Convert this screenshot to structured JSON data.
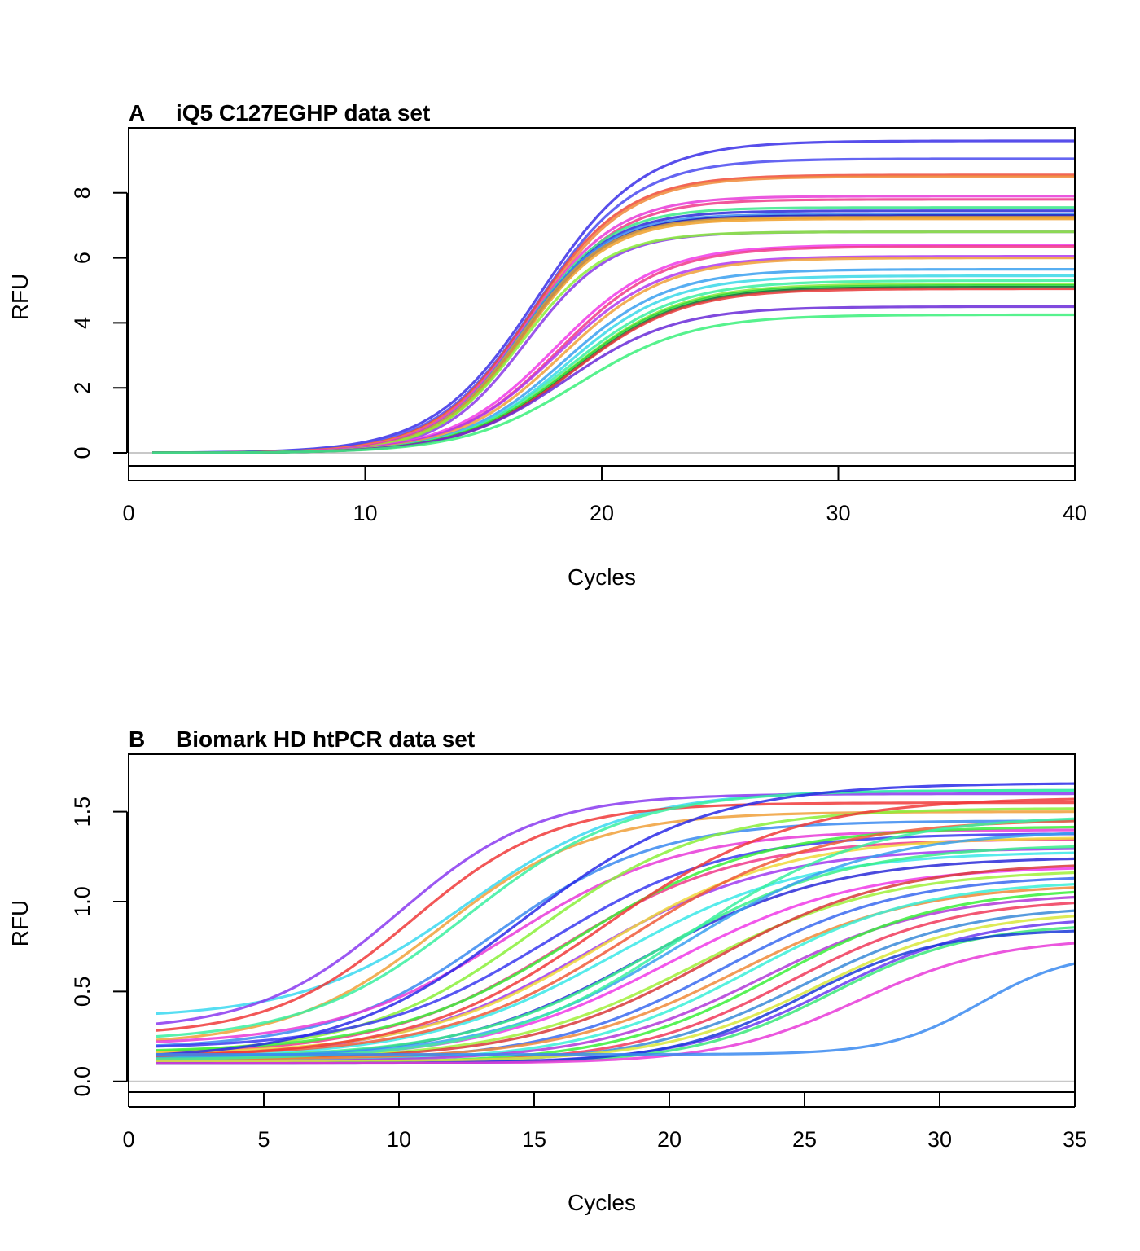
{
  "chart_data": [
    {
      "type": "line",
      "panel_letter": "A",
      "title": "iQ5 C127EGHP data set",
      "xlabel": "Cycles",
      "ylabel": "RFU",
      "xlim": [
        0,
        40
      ],
      "ylim": [
        -0.4,
        10
      ],
      "xticks": [
        0,
        10,
        20,
        30,
        40
      ],
      "yticks": [
        0,
        2,
        4,
        6,
        8
      ],
      "reference_line_y": 0,
      "grid": false,
      "legend": "none",
      "cycles_range": [
        1,
        40
      ],
      "series": [
        {
          "plateau": 9.6,
          "midpoint": 17.3,
          "slope": 2.2,
          "color": "#3a2fe8"
        },
        {
          "plateau": 9.05,
          "midpoint": 17.2,
          "slope": 2.1,
          "color": "#4a4af0"
        },
        {
          "plateau": 8.55,
          "midpoint": 17.0,
          "slope": 2.0,
          "color": "#f04a3a"
        },
        {
          "plateau": 8.5,
          "midpoint": 17.1,
          "slope": 2.0,
          "color": "#f08a3a"
        },
        {
          "plateau": 7.9,
          "midpoint": 16.8,
          "slope": 1.9,
          "color": "#e83ad8"
        },
        {
          "plateau": 7.8,
          "midpoint": 16.9,
          "slope": 1.9,
          "color": "#f03a8a"
        },
        {
          "plateau": 7.55,
          "midpoint": 16.7,
          "slope": 1.8,
          "color": "#3ae88a"
        },
        {
          "plateau": 7.45,
          "midpoint": 16.7,
          "slope": 1.8,
          "color": "#2a2ad8"
        },
        {
          "plateau": 7.35,
          "midpoint": 16.6,
          "slope": 1.8,
          "color": "#3a8af0"
        },
        {
          "plateau": 7.3,
          "midpoint": 16.7,
          "slope": 1.8,
          "color": "#1a1ab8"
        },
        {
          "plateau": 7.25,
          "midpoint": 16.6,
          "slope": 1.8,
          "color": "#d8a03a"
        },
        {
          "plateau": 7.2,
          "midpoint": 16.7,
          "slope": 1.8,
          "color": "#f0a02a"
        },
        {
          "plateau": 6.8,
          "midpoint": 16.8,
          "slope": 1.8,
          "color": "#8a3ae8"
        },
        {
          "plateau": 6.8,
          "midpoint": 16.6,
          "slope": 1.8,
          "color": "#8af03a"
        },
        {
          "plateau": 6.4,
          "midpoint": 18.0,
          "slope": 2.2,
          "color": "#f03ae8"
        },
        {
          "plateau": 6.35,
          "midpoint": 18.2,
          "slope": 2.2,
          "color": "#f03a8a"
        },
        {
          "plateau": 6.05,
          "midpoint": 18.1,
          "slope": 2.2,
          "color": "#b03af0"
        },
        {
          "plateau": 6.0,
          "midpoint": 18.3,
          "slope": 2.2,
          "color": "#f0a03a"
        },
        {
          "plateau": 5.65,
          "midpoint": 18.4,
          "slope": 2.2,
          "color": "#3aa0f0"
        },
        {
          "plateau": 5.45,
          "midpoint": 18.5,
          "slope": 2.2,
          "color": "#3ad8e8"
        },
        {
          "plateau": 5.3,
          "midpoint": 18.6,
          "slope": 2.3,
          "color": "#3af0a0"
        },
        {
          "plateau": 5.2,
          "midpoint": 18.7,
          "slope": 2.3,
          "color": "#8ae83a"
        },
        {
          "plateau": 5.15,
          "midpoint": 18.7,
          "slope": 2.3,
          "color": "#2ad83a"
        },
        {
          "plateau": 5.1,
          "midpoint": 18.8,
          "slope": 2.3,
          "color": "#1a6a3a"
        },
        {
          "plateau": 5.05,
          "midpoint": 18.8,
          "slope": 2.3,
          "color": "#e83a3a"
        },
        {
          "plateau": 4.5,
          "midpoint": 18.5,
          "slope": 2.3,
          "color": "#6a2ad8"
        },
        {
          "plateau": 4.25,
          "midpoint": 19.0,
          "slope": 2.4,
          "color": "#3af07a"
        }
      ]
    },
    {
      "type": "line",
      "panel_letter": "B",
      "title": "Biomark HD htPCR data set",
      "xlabel": "Cycles",
      "ylabel": "RFU",
      "xlim": [
        0,
        35
      ],
      "ylim": [
        -0.06,
        1.82
      ],
      "xticks": [
        0,
        5,
        10,
        15,
        20,
        25,
        30,
        35
      ],
      "yticks": [
        0.0,
        0.5,
        1.0,
        1.5
      ],
      "ytick_labels": [
        "0.0",
        "0.5",
        "1.0",
        "1.5"
      ],
      "reference_line_y": 0,
      "grid": false,
      "legend": "none",
      "cycles_range": [
        1,
        35
      ],
      "series": [
        {
          "base": 0.35,
          "plateau": 1.62,
          "midpoint": 12.5,
          "slope": 3.0,
          "color": "#3ad8f0"
        },
        {
          "base": 0.28,
          "plateau": 1.6,
          "midpoint": 10.0,
          "slope": 2.6,
          "color": "#8a3af0"
        },
        {
          "base": 0.25,
          "plateau": 1.55,
          "midpoint": 10.5,
          "slope": 2.6,
          "color": "#f03a3a"
        },
        {
          "base": 0.2,
          "plateau": 1.5,
          "midpoint": 11.5,
          "slope": 2.8,
          "color": "#f0a03a"
        },
        {
          "base": 0.22,
          "plateau": 1.62,
          "midpoint": 12.5,
          "slope": 3.0,
          "color": "#3af0a0"
        },
        {
          "base": 0.18,
          "plateau": 1.45,
          "midpoint": 13.5,
          "slope": 3.0,
          "color": "#3a8af0"
        },
        {
          "base": 0.2,
          "plateau": 1.4,
          "midpoint": 14.0,
          "slope": 3.2,
          "color": "#e83ad8"
        },
        {
          "base": 0.15,
          "plateau": 1.52,
          "midpoint": 15.0,
          "slope": 3.2,
          "color": "#8af03a"
        },
        {
          "base": 0.18,
          "plateau": 1.38,
          "midpoint": 15.5,
          "slope": 3.3,
          "color": "#3a3af0"
        },
        {
          "base": 0.15,
          "plateau": 1.35,
          "midpoint": 16.0,
          "slope": 3.3,
          "color": "#f03a8a"
        },
        {
          "base": 0.16,
          "plateau": 1.42,
          "midpoint": 16.5,
          "slope": 3.4,
          "color": "#3af03a"
        },
        {
          "base": 0.14,
          "plateau": 1.3,
          "midpoint": 17.0,
          "slope": 3.4,
          "color": "#a03af0"
        },
        {
          "base": 0.15,
          "plateau": 1.36,
          "midpoint": 17.5,
          "slope": 3.4,
          "color": "#f0d83a"
        },
        {
          "base": 0.13,
          "plateau": 1.28,
          "midpoint": 18.0,
          "slope": 3.5,
          "color": "#3ae8e8"
        },
        {
          "base": 0.14,
          "plateau": 1.46,
          "midpoint": 18.5,
          "slope": 3.5,
          "color": "#f05a3a"
        },
        {
          "base": 0.12,
          "plateau": 1.25,
          "midpoint": 19.0,
          "slope": 3.5,
          "color": "#2a2ad8"
        },
        {
          "base": 0.13,
          "plateau": 1.32,
          "midpoint": 19.5,
          "slope": 3.5,
          "color": "#3af08a"
        },
        {
          "base": 0.12,
          "plateau": 1.2,
          "midpoint": 20.0,
          "slope": 3.5,
          "color": "#f03ae8"
        },
        {
          "base": 0.13,
          "plateau": 1.4,
          "midpoint": 20.5,
          "slope": 3.5,
          "color": "#3aa0f0"
        },
        {
          "base": 0.12,
          "plateau": 1.18,
          "midpoint": 21.0,
          "slope": 3.5,
          "color": "#a0f03a"
        },
        {
          "base": 0.12,
          "plateau": 1.22,
          "midpoint": 21.5,
          "slope": 3.4,
          "color": "#d83a3a"
        },
        {
          "base": 0.11,
          "plateau": 1.15,
          "midpoint": 22.0,
          "slope": 3.3,
          "color": "#3a6af0"
        },
        {
          "base": 0.12,
          "plateau": 1.1,
          "midpoint": 22.5,
          "slope": 3.3,
          "color": "#f08a3a"
        },
        {
          "base": 0.11,
          "plateau": 1.12,
          "midpoint": 23.0,
          "slope": 3.2,
          "color": "#3af0d8"
        },
        {
          "base": 0.11,
          "plateau": 1.05,
          "midpoint": 23.5,
          "slope": 3.2,
          "color": "#b03ad8"
        },
        {
          "base": 0.1,
          "plateau": 1.08,
          "midpoint": 24.0,
          "slope": 3.1,
          "color": "#3af03a"
        },
        {
          "base": 0.1,
          "plateau": 1.02,
          "midpoint": 24.5,
          "slope": 3.0,
          "color": "#f03a5a"
        },
        {
          "base": 0.1,
          "plateau": 0.98,
          "midpoint": 25.0,
          "slope": 3.0,
          "color": "#3a8ad8"
        },
        {
          "base": 0.11,
          "plateau": 0.95,
          "midpoint": 25.5,
          "slope": 2.9,
          "color": "#d8e83a"
        },
        {
          "base": 0.1,
          "plateau": 0.92,
          "midpoint": 26.0,
          "slope": 2.8,
          "color": "#6a3af0"
        },
        {
          "base": 0.1,
          "plateau": 0.88,
          "midpoint": 26.0,
          "slope": 2.6,
          "color": "#3ae87a"
        },
        {
          "base": 0.1,
          "plateau": 0.85,
          "midpoint": 25.0,
          "slope": 2.5,
          "color": "#1a3ad8"
        },
        {
          "base": 0.1,
          "plateau": 0.8,
          "midpoint": 27.0,
          "slope": 2.6,
          "color": "#e83ad8"
        },
        {
          "base": 0.12,
          "plateau": 1.66,
          "midpoint": 14.5,
          "slope": 3.4,
          "color": "#2a2ae8"
        },
        {
          "base": 0.13,
          "plateau": 1.58,
          "midpoint": 17.5,
          "slope": 3.5,
          "color": "#f03a3a"
        },
        {
          "base": 0.12,
          "plateau": 1.48,
          "midpoint": 20.5,
          "slope": 3.4,
          "color": "#3af0a0"
        },
        {
          "base": 0.15,
          "plateau": 0.72,
          "midpoint": 31.5,
          "slope": 1.7,
          "color": "#3a8af0"
        }
      ]
    }
  ]
}
